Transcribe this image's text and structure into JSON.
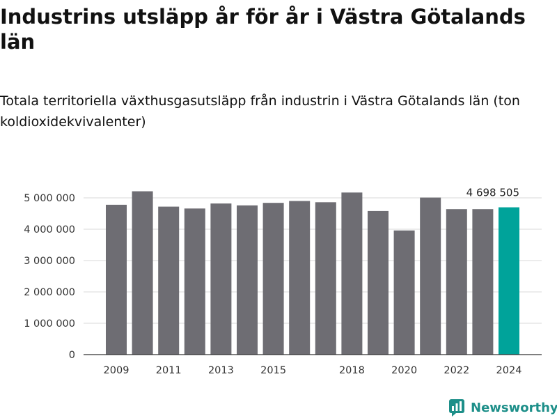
{
  "title": "Industrins utsläpp år för år i Västra Götalands län",
  "subtitle": "Totala territoriella växthusgasutsläpp från industrin i Västra Götalands län (ton koldioxidekvivalenter)",
  "brand": {
    "name": "Newsworthy",
    "icon": "newsworthy-logo-icon",
    "color": "#1d8f89"
  },
  "colors": {
    "bar": "#6e6d73",
    "highlight": "#00a39a",
    "grid": "#d9d9d9",
    "axis": "#333333"
  },
  "chart_data": {
    "type": "bar",
    "categories": [
      "2009",
      "2010",
      "2011",
      "2012",
      "2013",
      "2014",
      "2015",
      "2016",
      "2017",
      "2018",
      "2019",
      "2020",
      "2021",
      "2022",
      "2023",
      "2024"
    ],
    "values": [
      4780000,
      5210000,
      4720000,
      4660000,
      4820000,
      4760000,
      4840000,
      4900000,
      4860000,
      5170000,
      4580000,
      3960000,
      5010000,
      4640000,
      4640000,
      4698505
    ],
    "x_tick_labels": [
      "2009",
      "2011",
      "2013",
      "2015",
      "2018",
      "2020",
      "2022",
      "2024"
    ],
    "y_ticks": [
      0,
      1000000,
      2000000,
      3000000,
      4000000,
      5000000
    ],
    "y_tick_labels": [
      "0",
      "1 000 000",
      "2 000 000",
      "3 000 000",
      "4 000 000",
      "5 000 000"
    ],
    "ylim": [
      0,
      5400000
    ],
    "highlight_index": 15,
    "annotation": {
      "category": "2024",
      "text": "4 698 505"
    },
    "grid": true,
    "title": "Industrins utsläpp år för år i Västra Götalands län",
    "xlabel": "",
    "ylabel": ""
  }
}
